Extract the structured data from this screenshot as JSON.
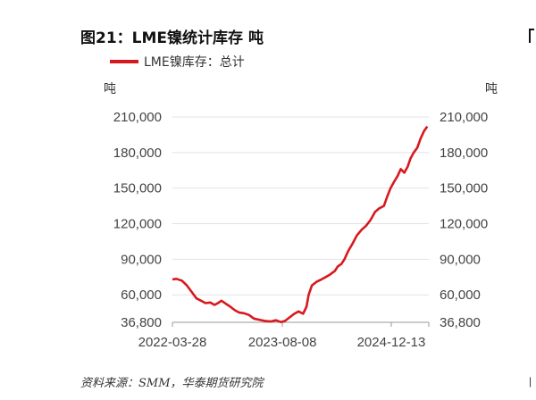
{
  "title": "图21：LME镍统计库存  吨",
  "source": "资料来源：SMM，华泰期货研究院",
  "edge_glyph": "|",
  "colors": {
    "series": "#d7191e",
    "grid": "#e2e2e2",
    "axis": "#999999"
  },
  "chart_data": {
    "type": "line",
    "title": "图21：LME镍统计库存  吨",
    "ylabel_left": "吨",
    "ylabel_right": "吨",
    "legend": {
      "position": "top-left",
      "entries": [
        "LME镍库存：总计"
      ]
    },
    "grid": true,
    "ylim": [
      36800,
      210000
    ],
    "yticks": [
      36800,
      60000,
      90000,
      120000,
      150000,
      180000,
      210000
    ],
    "ytick_labels": [
      "36,800",
      "60,000",
      "90,000",
      "120,000",
      "150,000",
      "180,000",
      "210,000"
    ],
    "xlim": [
      "2022-03-28",
      "2025-06-01"
    ],
    "xticks": [
      "2022-03-28",
      "2023-08-08",
      "2024-12-13"
    ],
    "xtick_labels": [
      "2022-03-28",
      "2023-08-08",
      "2024-12-13"
    ],
    "series": [
      {
        "name": "LME镍库存：总计",
        "x": [
          "2022-03-28",
          "2022-04-15",
          "2022-05-10",
          "2022-06-01",
          "2022-06-25",
          "2022-07-15",
          "2022-08-05",
          "2022-08-25",
          "2022-09-15",
          "2022-10-05",
          "2022-10-20",
          "2022-11-05",
          "2022-11-25",
          "2022-12-15",
          "2023-01-05",
          "2023-01-25",
          "2023-02-15",
          "2023-03-10",
          "2023-04-01",
          "2023-04-25",
          "2023-05-20",
          "2023-06-15",
          "2023-07-10",
          "2023-08-01",
          "2023-08-20",
          "2023-09-10",
          "2023-10-01",
          "2023-10-20",
          "2023-11-10",
          "2023-11-25",
          "2023-12-05",
          "2023-12-20",
          "2024-01-10",
          "2024-02-01",
          "2024-02-20",
          "2024-03-10",
          "2024-04-01",
          "2024-04-15",
          "2024-05-01",
          "2024-05-15",
          "2024-06-01",
          "2024-06-20",
          "2024-07-10",
          "2024-08-01",
          "2024-08-20",
          "2024-09-10",
          "2024-10-01",
          "2024-10-20",
          "2024-11-10",
          "2024-11-25",
          "2024-12-10",
          "2024-12-25",
          "2025-01-10",
          "2025-01-25",
          "2025-02-10",
          "2025-02-25",
          "2025-03-10",
          "2025-03-25",
          "2025-04-10",
          "2025-04-25",
          "2025-05-10",
          "2025-05-25"
        ],
        "values": [
          73000,
          73500,
          72000,
          68000,
          62000,
          57000,
          55000,
          53000,
          53500,
          51500,
          53000,
          55000,
          52500,
          50000,
          47000,
          45000,
          44500,
          43000,
          40000,
          39000,
          38000,
          37500,
          38500,
          37000,
          38000,
          41000,
          44000,
          46000,
          44000,
          50000,
          60000,
          68000,
          71000,
          73000,
          75000,
          77000,
          80000,
          84000,
          86000,
          90000,
          97000,
          103000,
          110000,
          115000,
          118000,
          123000,
          130000,
          133000,
          135000,
          143000,
          150000,
          155000,
          160000,
          166000,
          163000,
          168000,
          175000,
          180000,
          184000,
          192000,
          198000,
          202000
        ]
      }
    ]
  }
}
